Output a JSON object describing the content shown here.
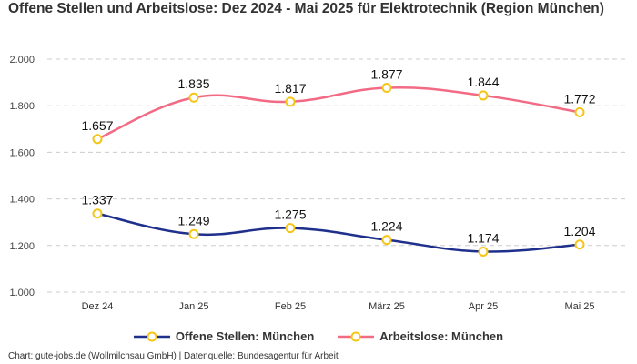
{
  "chart_data": {
    "type": "line",
    "title": "Offene Stellen und Arbeitslose: Dez 2024 - Mai 2025 für Elektrotechnik (Region München)",
    "categories": [
      "Dez 24",
      "Jan 25",
      "Feb 25",
      "März 25",
      "Apr 25",
      "Mai 25"
    ],
    "series": [
      {
        "name": "Offene Stellen: München",
        "color": "#1f2f8c",
        "values": [
          1337,
          1249,
          1275,
          1224,
          1174,
          1204
        ],
        "labels": [
          "1.337",
          "1.249",
          "1.275",
          "1.224",
          "1.174",
          "1.204"
        ]
      },
      {
        "name": "Arbeitslose: München",
        "color": "#f26a84",
        "values": [
          1657,
          1835,
          1817,
          1877,
          1844,
          1772
        ],
        "labels": [
          "1.657",
          "1.835",
          "1.817",
          "1.877",
          "1.844",
          "1.772"
        ]
      }
    ],
    "marker_color": "#f5c518",
    "ylim": [
      1000,
      2000
    ],
    "yticks": [
      1000,
      1200,
      1400,
      1600,
      1800,
      2000
    ],
    "ytick_labels": [
      "1.000",
      "1.200",
      "1.400",
      "1.600",
      "1.800",
      "2.000"
    ],
    "xlabel": "",
    "ylabel": "",
    "grid": true,
    "legend_position": "bottom"
  },
  "footer": "Chart: gute-jobs.de (Wollmilchsau GmbH) | Datenquelle: Bundesagentur für Arbeit"
}
